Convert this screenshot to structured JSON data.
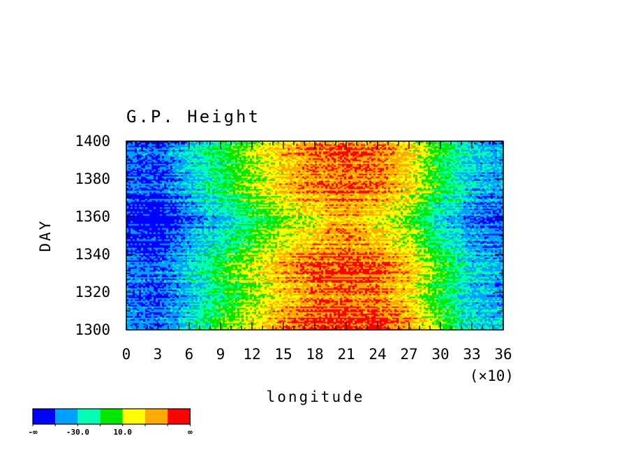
{
  "chart_data": {
    "type": "heatmap",
    "title": "G.P. Height",
    "xlabel": "longitude",
    "ylabel": "DAY",
    "x_scale_note": "(×10)",
    "xlim": [
      0,
      36
    ],
    "ylim": [
      1300,
      1400
    ],
    "x_ticks": [
      "0",
      "3",
      "6",
      "9",
      "12",
      "15",
      "18",
      "21",
      "24",
      "27",
      "30",
      "33",
      "36"
    ],
    "y_ticks": [
      "1300",
      "1320",
      "1340",
      "1360",
      "1380",
      "1400"
    ],
    "colorbar": {
      "colors": [
        "#0000ff",
        "#00a0ff",
        "#00ffb4",
        "#00e800",
        "#ffff00",
        "#ffaa00",
        "#ff0000"
      ],
      "labels": [
        "-∞",
        "-30.0",
        "10.0",
        "∞"
      ]
    },
    "band_profile": {
      "x": [
        0,
        3,
        6,
        9,
        12,
        15,
        18,
        21,
        24,
        27,
        30,
        33,
        36
      ],
      "level": [
        0.6,
        0.2,
        1.3,
        2.3,
        3.4,
        4.4,
        5.1,
        5.4,
        5.1,
        4.3,
        2.6,
        1.3,
        0.9
      ]
    }
  }
}
